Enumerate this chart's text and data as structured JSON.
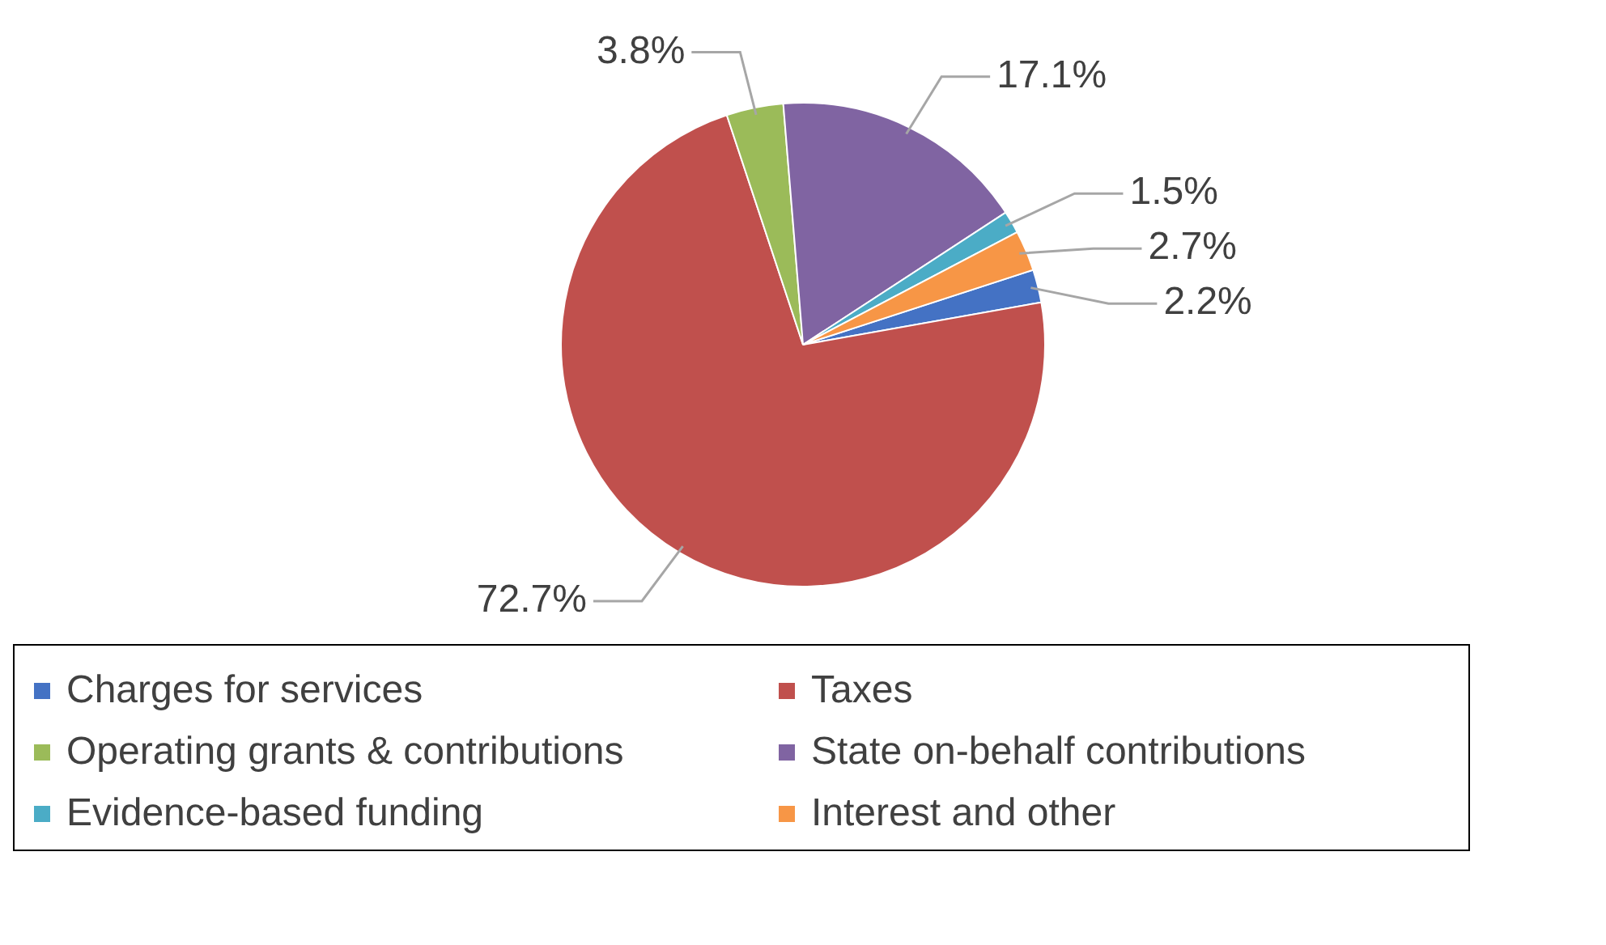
{
  "chart_data": {
    "type": "pie",
    "categories": [
      "Charges for services",
      "Taxes",
      "Operating grants & contributions",
      "State on-behalf contributions",
      "Evidence-based funding",
      "Interest and other"
    ],
    "values": [
      2.2,
      72.7,
      3.8,
      17.1,
      1.5,
      2.7
    ],
    "value_labels": [
      "2.2%",
      "72.7%",
      "3.8%",
      "17.1%",
      "1.5%",
      "2.7%"
    ],
    "colors": [
      "#4472c4",
      "#c0504d",
      "#9bbb59",
      "#8064a2",
      "#4bacc6",
      "#f79646"
    ],
    "legend": "bottom"
  }
}
